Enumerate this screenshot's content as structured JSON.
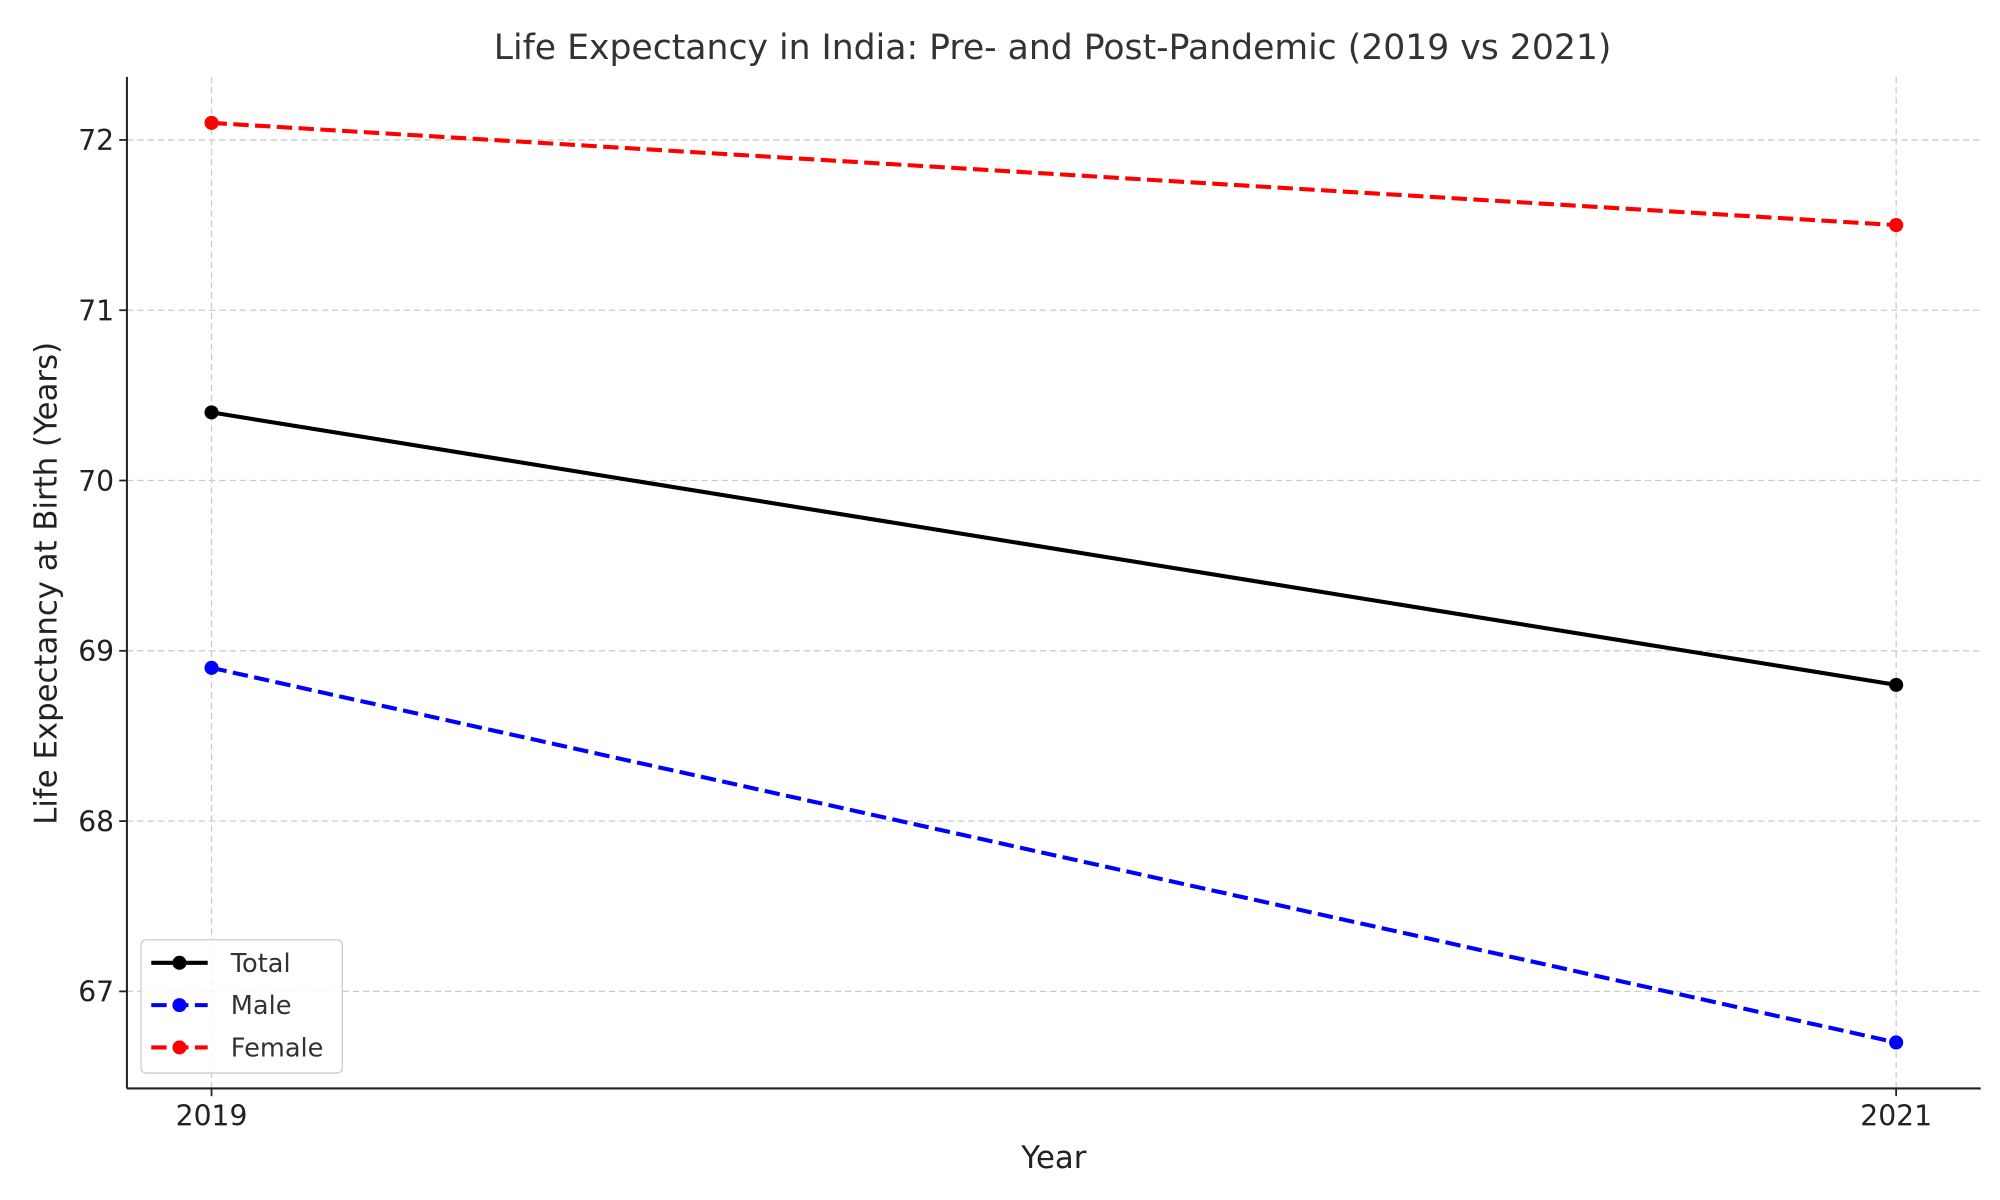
{
  "chart_data": {
    "type": "line",
    "title": "Life Expectancy in India: Pre- and Post-Pandemic (2019 vs 2021)",
    "xlabel": "Year",
    "ylabel": "Life Expectancy at Birth (Years)",
    "x": [
      "2019",
      "2021"
    ],
    "xticks": [
      "2019",
      "2021"
    ],
    "yticks": [
      "67",
      "68",
      "69",
      "70",
      "71",
      "72"
    ],
    "ylim": [
      66.43,
      72.37
    ],
    "grid": true,
    "legend_position": "lower-left",
    "series": [
      {
        "name": "Total",
        "values": [
          70.4,
          68.8
        ],
        "color": "#000000",
        "linestyle": "solid",
        "marker": "circle"
      },
      {
        "name": "Male",
        "values": [
          68.9,
          66.7
        ],
        "color": "#0000ff",
        "linestyle": "dashed",
        "marker": "circle"
      },
      {
        "name": "Female",
        "values": [
          72.1,
          71.5
        ],
        "color": "#ff0000",
        "linestyle": "dashed",
        "marker": "circle"
      }
    ]
  }
}
